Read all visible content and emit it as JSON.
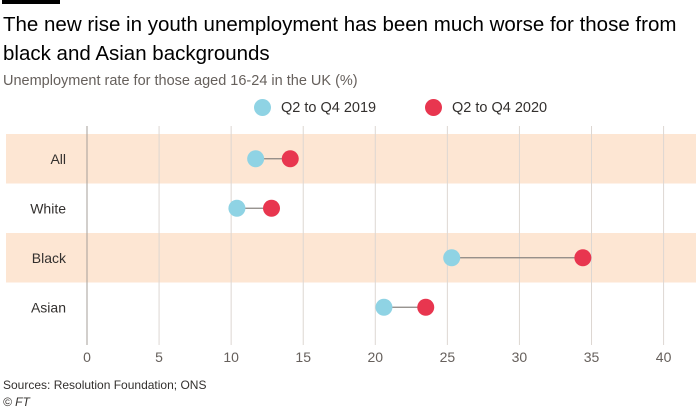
{
  "title": "The new rise in youth unemployment has been much worse for those from black and Asian backgrounds",
  "subtitle": "Unemployment rate for those aged 16-24 in the UK (%)",
  "source": "Sources: Resolution Foundation; ONS",
  "credit": "© FT",
  "colors": {
    "series_2019": "#8fd3e4",
    "series_2020": "#e8364f",
    "band": "#fde6d3",
    "grid": "#ddd7d2",
    "connector": "#8a8480"
  },
  "chart_data": {
    "type": "dumbbell",
    "categories": [
      "All",
      "White",
      "Black",
      "Asian"
    ],
    "series": [
      {
        "name": "Q2 to Q4 2019",
        "values": [
          11.7,
          10.4,
          25.3,
          20.6
        ]
      },
      {
        "name": "Q2 to Q4 2020",
        "values": [
          14.1,
          12.8,
          34.4,
          23.5
        ]
      }
    ],
    "xlim": [
      0,
      41
    ],
    "xticks": [
      0,
      5,
      10,
      15,
      20,
      25,
      30,
      35,
      40
    ],
    "xlabel": "",
    "ylabel": "",
    "grid": true,
    "legend_position": "top-center"
  }
}
